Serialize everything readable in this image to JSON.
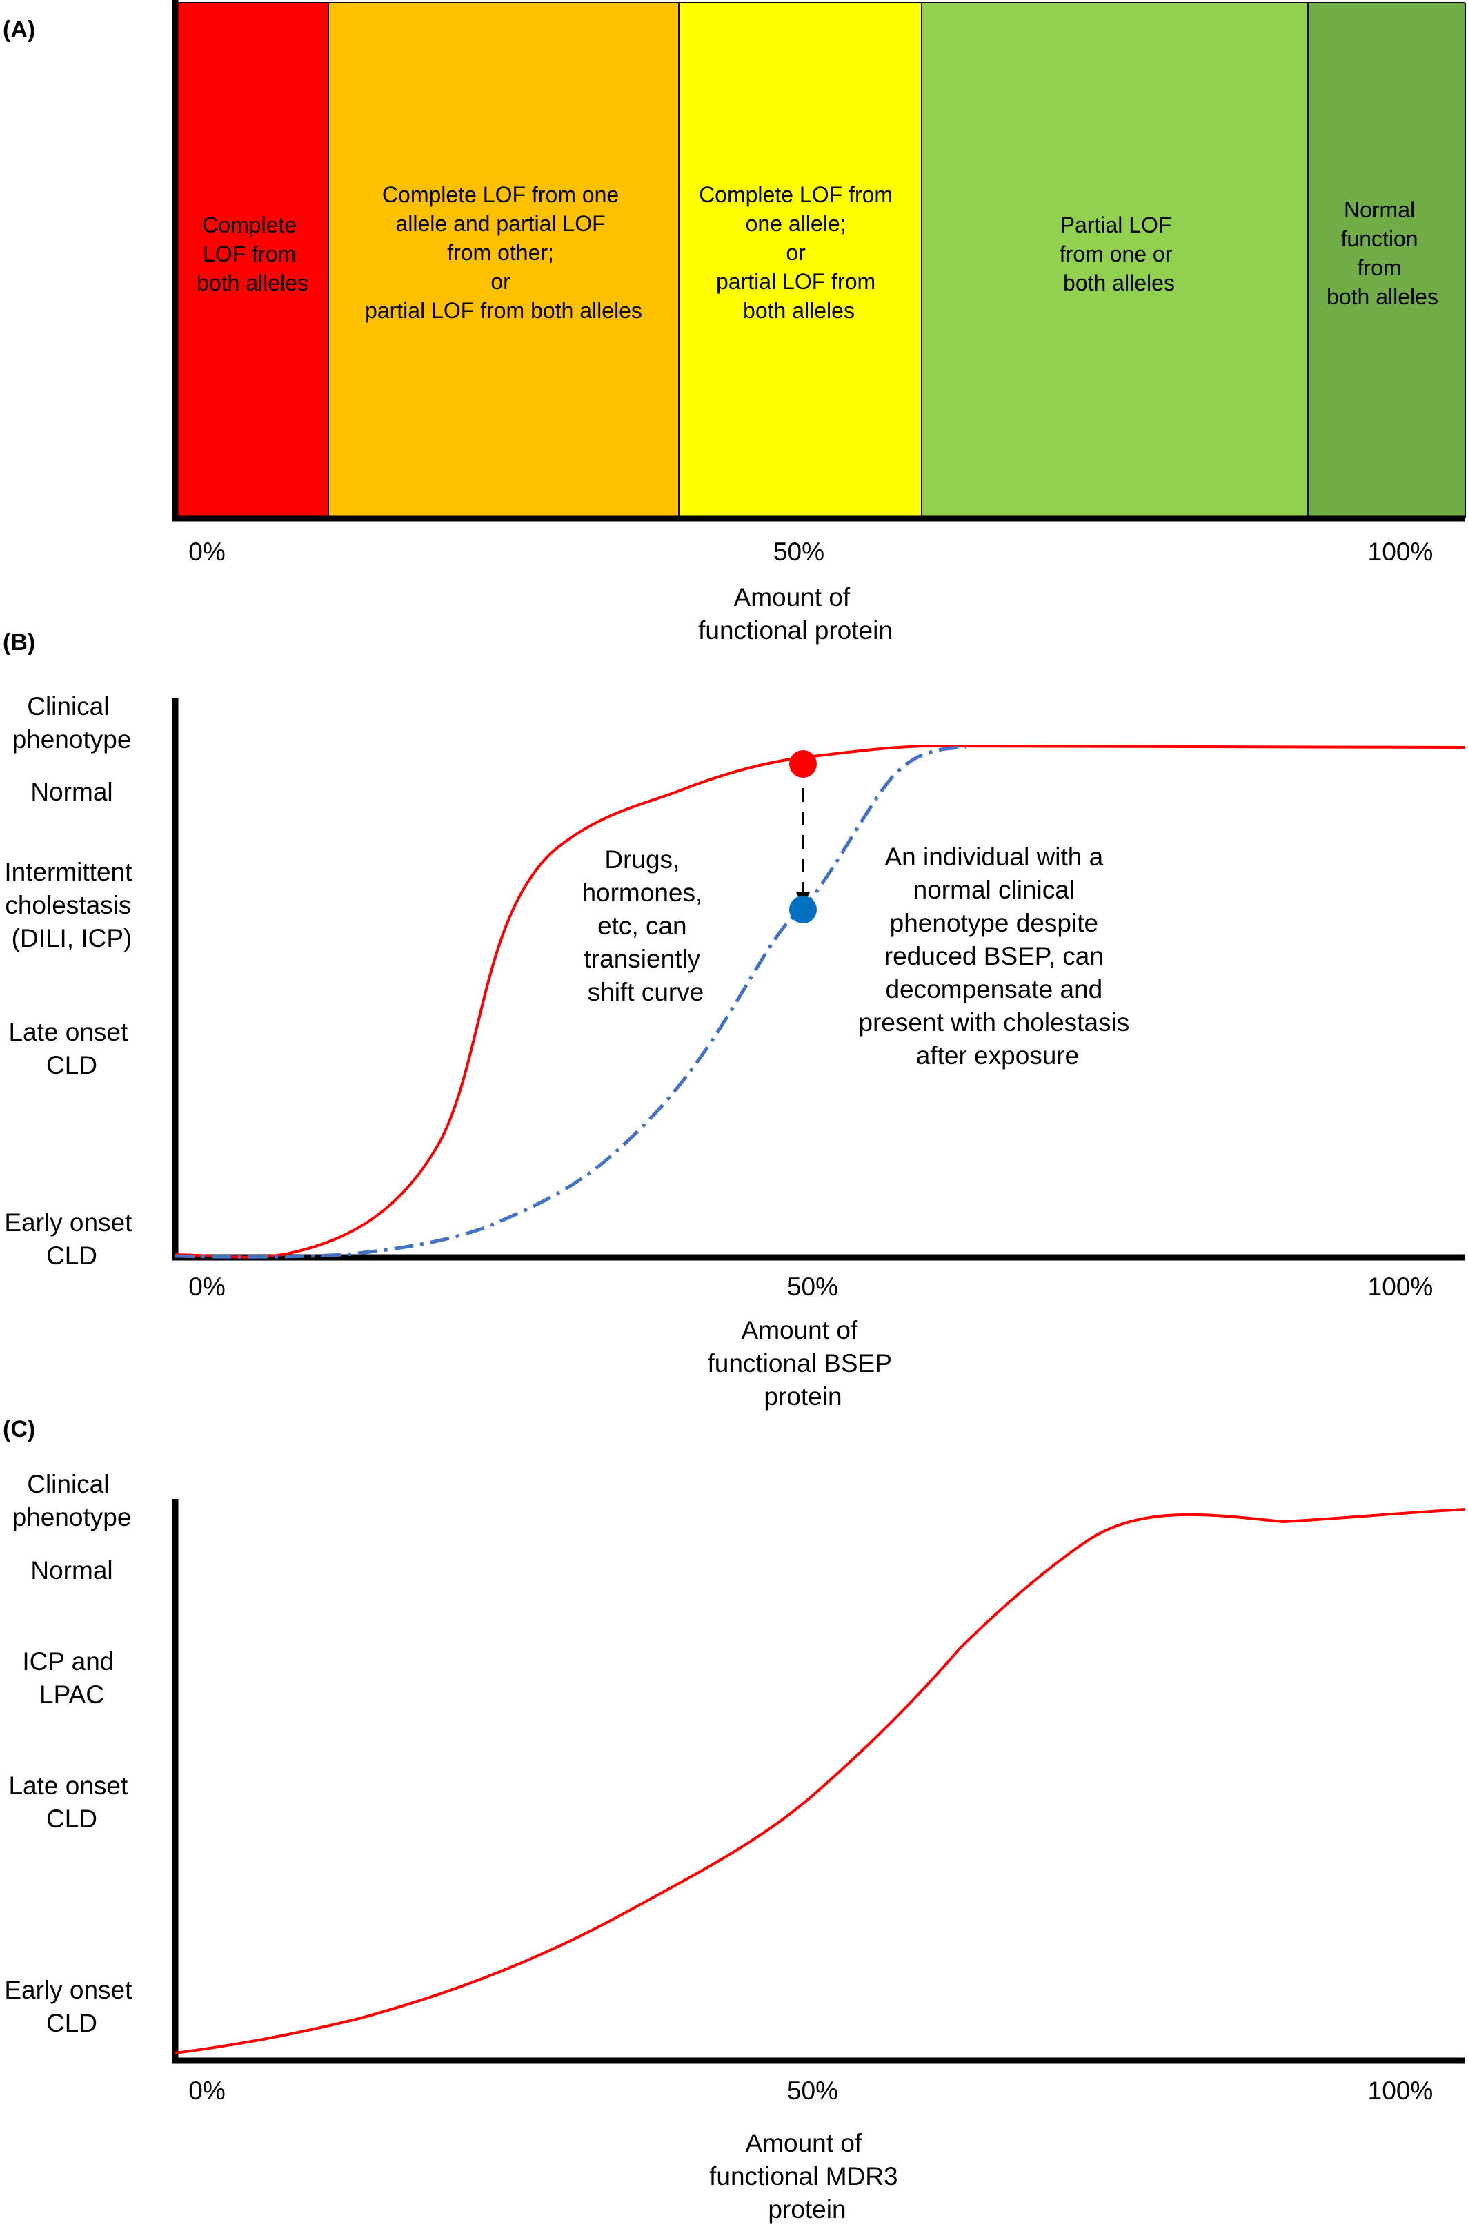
{
  "panelA": {
    "label": "(A)",
    "bands": [
      {
        "lines": [
          "Complete",
          "LOF from",
          "both alleles"
        ],
        "color": "#ff0000",
        "from_pct": 0,
        "to_pct": 12
      },
      {
        "lines": [
          "Complete LOF from one",
          "allele and partial LOF",
          "from other;",
          "or",
          "partial LOF from both alleles"
        ],
        "color": "#ffc000",
        "from_pct": 12,
        "to_pct": 39
      },
      {
        "lines": [
          "Complete LOF from",
          "one allele;",
          "or",
          "partial LOF from",
          "both alleles"
        ],
        "color": "#ffff00",
        "from_pct": 39,
        "to_pct": 58
      },
      {
        "lines": [
          "Partial LOF",
          "from one or",
          "both alleles"
        ],
        "color": "#92d050",
        "from_pct": 58,
        "to_pct": 88
      },
      {
        "lines": [
          "Normal",
          "function",
          "from",
          "both alleles"
        ],
        "color": "#70ad47",
        "from_pct": 88,
        "to_pct": 100
      }
    ],
    "ticks": [
      "0%",
      "50%",
      "100%"
    ],
    "xlabel": [
      "Amount of",
      "functional protein"
    ]
  },
  "panelB": {
    "label": "(B)",
    "y_categories": [
      {
        "lines": [
          "Clinical",
          "phenotype"
        ]
      },
      {
        "lines": [
          "Normal"
        ]
      },
      {
        "lines": [
          "Intermittent",
          "cholestasis",
          "(DILI, ICP)"
        ]
      },
      {
        "lines": [
          "Late onset",
          "CLD"
        ]
      },
      {
        "lines": [
          "Early onset",
          "CLD"
        ]
      }
    ],
    "ticks": [
      "0%",
      "50%",
      "100%"
    ],
    "xlabel": [
      "Amount of",
      "functional BSEP",
      "protein"
    ],
    "annotation_left": [
      "Drugs,",
      "hormones,",
      "etc, can",
      "transiently",
      "shift curve"
    ],
    "annotation_right": [
      "An individual with a",
      "normal clinical",
      "phenotype despite",
      "reduced BSEP, can",
      "decompensate and",
      "present with cholestasis",
      "after exposure"
    ],
    "colors": {
      "red_curve": "#ff0000",
      "blue_curve": "#4472c4",
      "red_point": "#ff0000",
      "blue_point": "#0070c0"
    }
  },
  "panelC": {
    "label": "(C)",
    "y_categories": [
      {
        "lines": [
          "Clinical",
          "phenotype"
        ]
      },
      {
        "lines": [
          "Normal"
        ]
      },
      {
        "lines": [
          "ICP and",
          "LPAC"
        ]
      },
      {
        "lines": [
          "Late onset",
          "CLD"
        ]
      },
      {
        "lines": [
          "Early onset",
          "CLD"
        ]
      }
    ],
    "ticks": [
      "0%",
      "50%",
      "100%"
    ],
    "xlabel": [
      "Amount of",
      "functional MDR3",
      "protein"
    ],
    "colors": {
      "curve": "#ff0000"
    }
  }
}
